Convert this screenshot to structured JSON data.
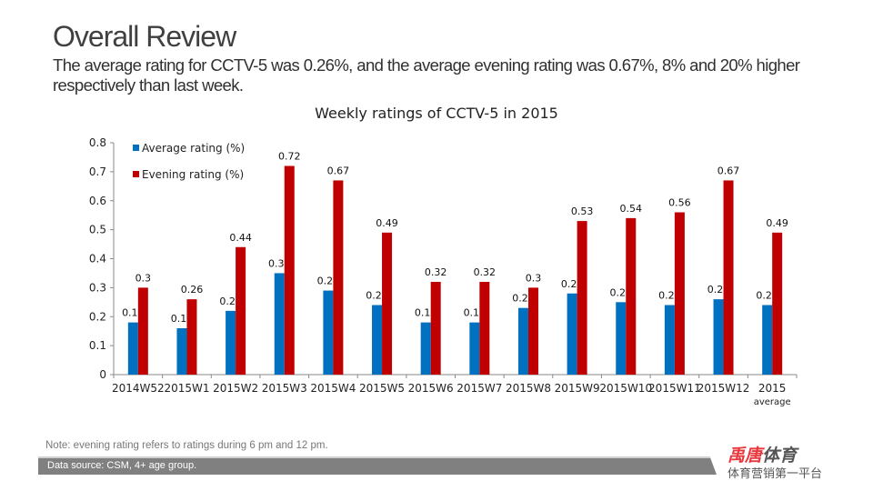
{
  "header": {
    "title": "Overall Review",
    "subtitle": "The average rating for CCTV-5 was 0.26%, and the average evening rating was 0.67%, 8% and 20% higher respectively than last week."
  },
  "footer": {
    "note": "Note: evening rating refers to ratings during 6 pm and 12 pm.",
    "source": "Data source: CSM, 4+ age group.",
    "logo_red": "禹唐",
    "logo_dark": "体育",
    "tagline": "体育营销第一平台"
  },
  "chart_data": {
    "type": "bar",
    "title": "Weekly ratings of CCTV-5 in 2015",
    "xlabel": "",
    "ylabel": "",
    "ylim": [
      0,
      0.8
    ],
    "yticks": [
      "0",
      "0.1",
      "0.2",
      "0.3",
      "0.4",
      "0.5",
      "0.6",
      "0.7",
      "0.8"
    ],
    "legend_position": "top-left",
    "grid": false,
    "categories": [
      "2014W52",
      "2015W1",
      "2015W2",
      "2015W3",
      "2015W4",
      "2015W5",
      "2015W6",
      "2015W7",
      "2015W8",
      "2015W9",
      "2015W10",
      "2015W11",
      "2015W12",
      "2015 average"
    ],
    "series": [
      {
        "name": "Average rating (%)",
        "color": "#0070c0",
        "values": [
          0.18,
          0.16,
          0.22,
          0.35,
          0.29,
          0.24,
          0.18,
          0.18,
          0.23,
          0.28,
          0.25,
          0.24,
          0.26,
          0.24
        ]
      },
      {
        "name": "Evening rating (%)",
        "color": "#c00000",
        "values": [
          0.3,
          0.26,
          0.44,
          0.72,
          0.67,
          0.49,
          0.32,
          0.32,
          0.3,
          0.53,
          0.54,
          0.56,
          0.67,
          0.49
        ]
      }
    ]
  }
}
